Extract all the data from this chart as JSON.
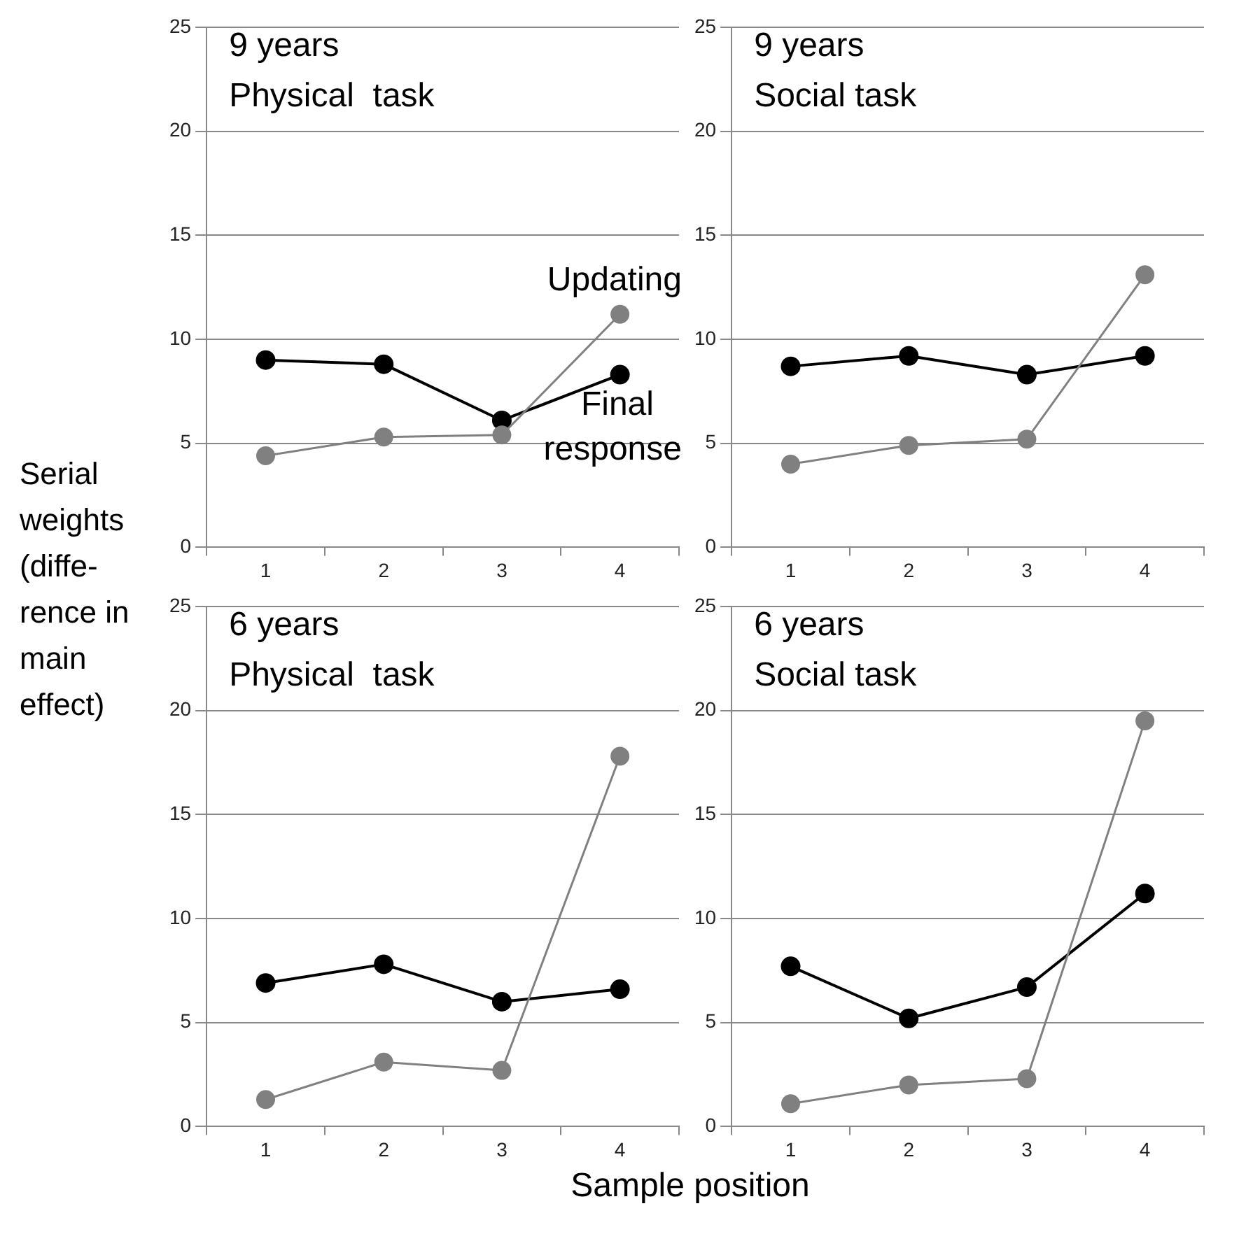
{
  "chart_data": [
    {
      "type": "line",
      "title": "9 years",
      "subtitle": "Physical  task",
      "ylabel": "Serial weights (diffe-rence in main effect)",
      "categories": [
        "1",
        "2",
        "3",
        "4"
      ],
      "ylim": [
        0,
        25
      ],
      "yticks": [
        0,
        5,
        10,
        15,
        20,
        25
      ],
      "grid": "y",
      "legend": false,
      "marker": "circle",
      "line_style": "solid",
      "series": [
        {
          "name": "Updating",
          "color": "#808080",
          "values": [
            4.4,
            5.3,
            5.4,
            11.2
          ]
        },
        {
          "name": "Final response",
          "color": "#000000",
          "values": [
            9.0,
            8.8,
            6.1,
            8.3
          ]
        }
      ]
    },
    {
      "type": "line",
      "title": "9 years",
      "subtitle": "Social task",
      "categories": [
        "1",
        "2",
        "3",
        "4"
      ],
      "ylim": [
        0,
        25
      ],
      "yticks": [
        0,
        5,
        10,
        15,
        20,
        25
      ],
      "grid": "y",
      "legend": false,
      "marker": "circle",
      "line_style": "solid",
      "series": [
        {
          "color": "#808080",
          "values": [
            4.0,
            4.9,
            5.2,
            13.1
          ]
        },
        {
          "color": "#000000",
          "values": [
            8.7,
            9.2,
            8.3,
            9.2
          ]
        }
      ]
    },
    {
      "type": "line",
      "title": "6 years",
      "subtitle": "Physical  task",
      "xlabel": "Sample position",
      "categories": [
        "1",
        "2",
        "3",
        "4"
      ],
      "ylim": [
        0,
        25
      ],
      "yticks": [
        0,
        5,
        10,
        15,
        20,
        25
      ],
      "grid": "y",
      "legend": false,
      "marker": "circle",
      "line_style": "solid",
      "series": [
        {
          "color": "#808080",
          "values": [
            1.3,
            3.1,
            2.7,
            17.8
          ]
        },
        {
          "color": "#000000",
          "values": [
            6.9,
            7.8,
            6.0,
            6.6
          ]
        }
      ]
    },
    {
      "type": "line",
      "title": "6 years",
      "subtitle": "Social task",
      "categories": [
        "1",
        "2",
        "3",
        "4"
      ],
      "ylim": [
        0,
        25
      ],
      "yticks": [
        0,
        5,
        10,
        15,
        20,
        25
      ],
      "grid": "y",
      "legend": false,
      "marker": "circle",
      "line_style": "solid",
      "series": [
        {
          "color": "#808080",
          "values": [
            1.1,
            2.0,
            2.3,
            19.5
          ]
        },
        {
          "color": "#000000",
          "values": [
            7.7,
            5.2,
            6.7,
            11.2
          ]
        }
      ]
    }
  ]
}
